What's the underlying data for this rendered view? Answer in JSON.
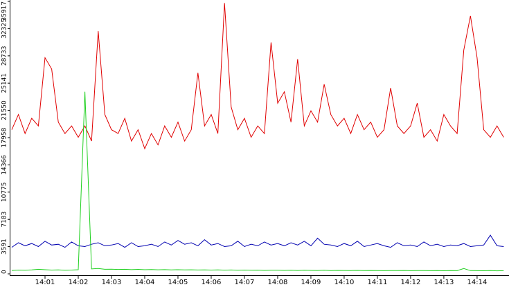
{
  "chart_data": {
    "type": "line",
    "x": [
      0,
      0.2,
      0.4,
      0.6,
      0.8,
      1,
      1.2,
      1.4,
      1.6,
      1.8,
      2,
      2.2,
      2.4,
      2.6,
      2.8,
      3,
      3.2,
      3.4,
      3.6,
      3.8,
      4,
      4.2,
      4.4,
      4.6,
      4.8,
      5,
      5.2,
      5.4,
      5.6,
      5.8,
      6,
      6.2,
      6.4,
      6.6,
      6.8,
      7,
      7.2,
      7.4,
      7.6,
      7.8,
      8,
      8.2,
      8.4,
      8.6,
      8.8,
      9,
      9.2,
      9.4,
      9.6,
      9.8,
      10,
      10.2,
      10.4,
      10.6,
      10.8,
      11,
      11.2,
      11.4,
      11.6,
      11.8,
      12,
      12.2,
      12.4,
      12.6,
      12.8,
      13,
      13.2,
      13.4,
      13.6,
      13.8,
      14,
      14.2,
      14.4,
      14.6,
      14.8
    ],
    "series": [
      {
        "color": "#e00000",
        "values": [
          19000,
          21000,
          18500,
          20500,
          19500,
          28500,
          27000,
          20000,
          18500,
          19500,
          18000,
          19500,
          17500,
          32000,
          21000,
          19000,
          18500,
          20500,
          17500,
          19000,
          16500,
          18500,
          17000,
          19500,
          18000,
          20000,
          17500,
          19000,
          26500,
          19500,
          21000,
          18500,
          35700,
          22000,
          19000,
          20500,
          18000,
          19500,
          18500,
          30500,
          22500,
          24000,
          20000,
          28300,
          19500,
          21500,
          20000,
          25000,
          21000,
          19500,
          20500,
          18500,
          21000,
          19000,
          20000,
          18000,
          19000,
          24500,
          19500,
          18500,
          19500,
          22500,
          18000,
          19000,
          17500,
          21000,
          19500,
          18500,
          29500,
          34000,
          28500,
          19000,
          18000,
          19500,
          18000
        ]
      },
      {
        "color": "#0000b0",
        "values": [
          3500,
          4100,
          3700,
          4000,
          3600,
          4300,
          3800,
          3900,
          3500,
          4200,
          3700,
          3600,
          3900,
          4100,
          3700,
          3800,
          4000,
          3500,
          4100,
          3600,
          3700,
          3900,
          3600,
          4200,
          3800,
          4400,
          3900,
          4100,
          3700,
          4500,
          3800,
          4000,
          3600,
          3700,
          4300,
          3600,
          3900,
          3700,
          4200,
          3800,
          4000,
          3700,
          4100,
          3800,
          4300,
          3700,
          4700,
          3900,
          3800,
          3600,
          4000,
          3700,
          4300,
          3600,
          3800,
          4000,
          3700,
          3500,
          4100,
          3700,
          3800,
          3600,
          4200,
          3700,
          3900,
          3600,
          3800,
          3700,
          4000,
          3600,
          3700,
          3800,
          5100,
          3700,
          3600
        ]
      },
      {
        "color": "#20d020",
        "values": [
          450,
          500,
          480,
          520,
          600,
          550,
          500,
          520,
          480,
          500,
          550,
          24000,
          650,
          700,
          600,
          620,
          580,
          600,
          560,
          590,
          550,
          570,
          540,
          560,
          530,
          550,
          520,
          540,
          510,
          530,
          500,
          520,
          490,
          510,
          480,
          500,
          470,
          490,
          460,
          480,
          470,
          460,
          480,
          450,
          470,
          460,
          450,
          470,
          440,
          460,
          450,
          440,
          460,
          430,
          450,
          440,
          420,
          440,
          430,
          450,
          420,
          440,
          430,
          420,
          440,
          410,
          430,
          420,
          700,
          430,
          420,
          410,
          430,
          400,
          420
        ]
      }
    ],
    "xlim": [
      0,
      14.96
    ],
    "xticks": [
      {
        "value": 1,
        "label": "14:01"
      },
      {
        "value": 2,
        "label": "14:02"
      },
      {
        "value": 3,
        "label": "14:03"
      },
      {
        "value": 4,
        "label": "14:04"
      },
      {
        "value": 5,
        "label": "14:05"
      },
      {
        "value": 6,
        "label": "14:06"
      },
      {
        "value": 7,
        "label": "14:07"
      },
      {
        "value": 8,
        "label": "14:08"
      },
      {
        "value": 9,
        "label": "14:09"
      },
      {
        "value": 10,
        "label": "14:10"
      },
      {
        "value": 11,
        "label": "14:11"
      },
      {
        "value": 12,
        "label": "14:12"
      },
      {
        "value": 13,
        "label": "14:13"
      },
      {
        "value": 14,
        "label": "14:14"
      }
    ],
    "ylim": [
      0,
      35917
    ],
    "yticks": [
      0,
      3591,
      7183,
      10775,
      14366,
      17958,
      21550,
      25141,
      28733,
      32325,
      35917
    ]
  }
}
